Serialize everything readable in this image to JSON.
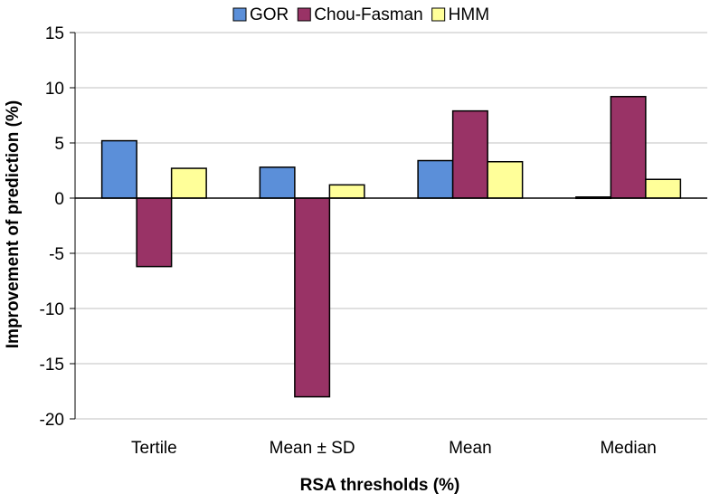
{
  "chart_data": {
    "type": "bar",
    "title": "",
    "xlabel": "RSA thresholds (%)",
    "ylabel": "Improvement of prediction (%)",
    "ylim": [
      -20,
      15
    ],
    "yticks": [
      15,
      10,
      5,
      0,
      -5,
      -10,
      -15,
      -20
    ],
    "ytick_labels": [
      "15",
      "10",
      "5",
      "0",
      "-5",
      "-10",
      "-15",
      "-20"
    ],
    "categories": [
      "Tertile",
      "Mean ± SD",
      "Mean",
      "Median"
    ],
    "grid": true,
    "legend_position": "top",
    "series": [
      {
        "name": "GOR",
        "color": "#5b8fd9",
        "values": [
          5.2,
          2.8,
          3.4,
          0.1
        ]
      },
      {
        "name": "Chou-Fasman",
        "color": "#993366",
        "values": [
          -6.2,
          -18.0,
          7.9,
          9.2
        ]
      },
      {
        "name": "HMM",
        "color": "#ffff99",
        "values": [
          2.7,
          1.2,
          3.3,
          1.7
        ]
      }
    ]
  }
}
